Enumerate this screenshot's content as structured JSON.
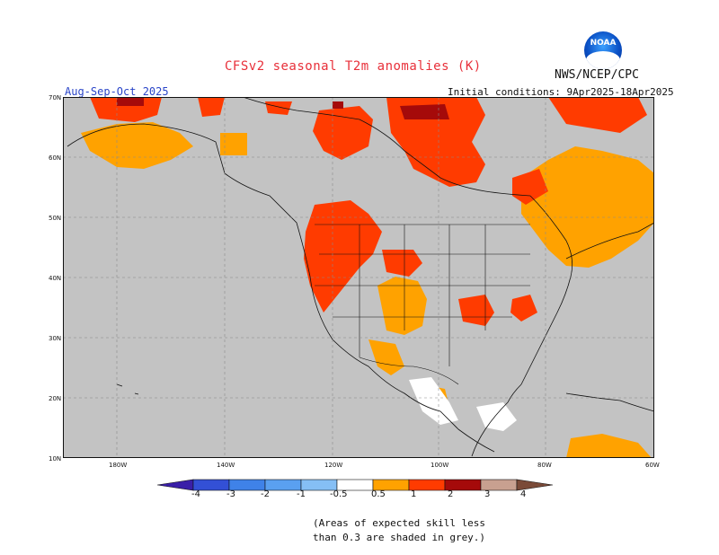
{
  "header": {
    "title": "CFSv2 seasonal T2m anomalies (K)",
    "org": "NWS/NCEP/CPC",
    "logo_text": "NOAA",
    "season": "Aug-Sep-Oct 2025",
    "initial_conditions": "Initial conditions: 9Apr2025-18Apr2025"
  },
  "axes": {
    "lat_labels": [
      "70N",
      "60N",
      "50N",
      "40N",
      "30N",
      "20N",
      "10N"
    ],
    "lon_labels": [
      "180W",
      "140W",
      "120W",
      "100W",
      "80W",
      "60W"
    ]
  },
  "colorbar": {
    "labels": [
      "-4",
      "-3",
      "-2",
      "-1",
      "-0.5",
      "0.5",
      "1",
      "2",
      "3",
      "4"
    ],
    "colors": [
      "#3a1fa8",
      "#3350d6",
      "#3f82e8",
      "#5aa0f0",
      "#85bff5",
      "#ffffff",
      "#ffa200",
      "#ff3b00",
      "#a50a0a",
      "#c8a090",
      "#7a4a38"
    ]
  },
  "map": {
    "land_grey": "#c3c3c3",
    "orange": "#ffa200",
    "red": "#ff3b00",
    "darkred": "#a50a0a"
  },
  "note": {
    "line1": "(Areas of expected skill less",
    "line2": "than 0.3 are shaded in grey.)"
  }
}
